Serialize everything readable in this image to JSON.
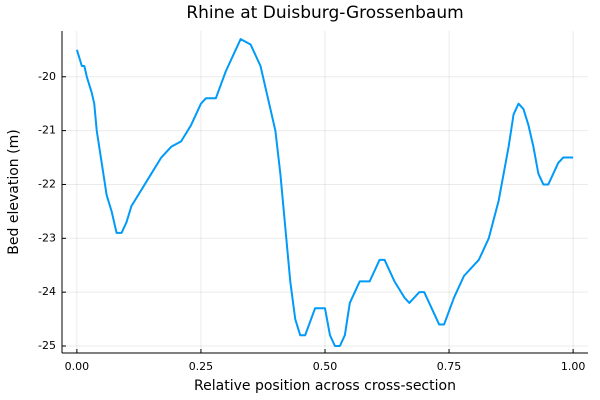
{
  "chart_data": {
    "type": "line",
    "title": "Rhine at Duisburg-Grossenbaum",
    "x_label": "Relative position across cross-section",
    "y_label": "Bed elevation (m)",
    "x": [
      0,
      0.01,
      0.015,
      0.02,
      0.03,
      0.035,
      0.04,
      0.05,
      0.06,
      0.07,
      0.08,
      0.09,
      0.1,
      0.11,
      0.13,
      0.15,
      0.17,
      0.19,
      0.21,
      0.23,
      0.25,
      0.26,
      0.28,
      0.3,
      0.33,
      0.35,
      0.37,
      0.39,
      0.4,
      0.41,
      0.42,
      0.43,
      0.44,
      0.45,
      0.46,
      0.48,
      0.5,
      0.51,
      0.52,
      0.53,
      0.54,
      0.55,
      0.56,
      0.57,
      0.59,
      0.6,
      0.61,
      0.62,
      0.64,
      0.66,
      0.67,
      0.68,
      0.69,
      0.7,
      0.72,
      0.73,
      0.74,
      0.76,
      0.78,
      0.8,
      0.81,
      0.83,
      0.85,
      0.87,
      0.88,
      0.89,
      0.9,
      0.91,
      0.92,
      0.93,
      0.94,
      0.95,
      0.96,
      0.97,
      0.98,
      1.0
    ],
    "series": [
      {
        "name": "y1",
        "color": "#009af9",
        "values": [
          -19.5,
          -19.8,
          -19.8,
          -20.0,
          -20.3,
          -20.5,
          -21.0,
          -21.6,
          -22.2,
          -22.5,
          -22.9,
          -22.9,
          -22.7,
          -22.4,
          -22.1,
          -21.8,
          -21.5,
          -21.3,
          -21.2,
          -20.9,
          -20.5,
          -20.4,
          -20.4,
          -19.9,
          -19.3,
          -19.4,
          -19.8,
          -20.6,
          -21.0,
          -21.8,
          -22.8,
          -23.8,
          -24.5,
          -24.8,
          -24.8,
          -24.3,
          -24.3,
          -24.8,
          -25.0,
          -25.0,
          -24.8,
          -24.2,
          -24.0,
          -23.8,
          -23.8,
          -23.6,
          -23.4,
          -23.4,
          -23.8,
          -24.1,
          -24.2,
          -24.1,
          -24.0,
          -24.0,
          -24.4,
          -24.6,
          -24.6,
          -24.1,
          -23.7,
          -23.5,
          -23.4,
          -23.0,
          -22.3,
          -21.3,
          -20.7,
          -20.5,
          -20.6,
          -20.9,
          -21.3,
          -21.8,
          -22.0,
          -22.0,
          -21.8,
          -21.6,
          -21.5,
          -21.5
        ]
      }
    ],
    "xlim": [
      -0.03,
      1.03
    ],
    "ylim": [
      -25.13,
      -19.15
    ],
    "xticks": [
      {
        "value": 0,
        "label": "0.00"
      },
      {
        "value": 0.25,
        "label": "0.25"
      },
      {
        "value": 0.5,
        "label": "0.50"
      },
      {
        "value": 0.75,
        "label": "0.75"
      },
      {
        "value": 1,
        "label": "1.00"
      }
    ],
    "yticks": [
      -25,
      -24,
      -23,
      -22,
      -21,
      -20
    ],
    "grid": true
  }
}
